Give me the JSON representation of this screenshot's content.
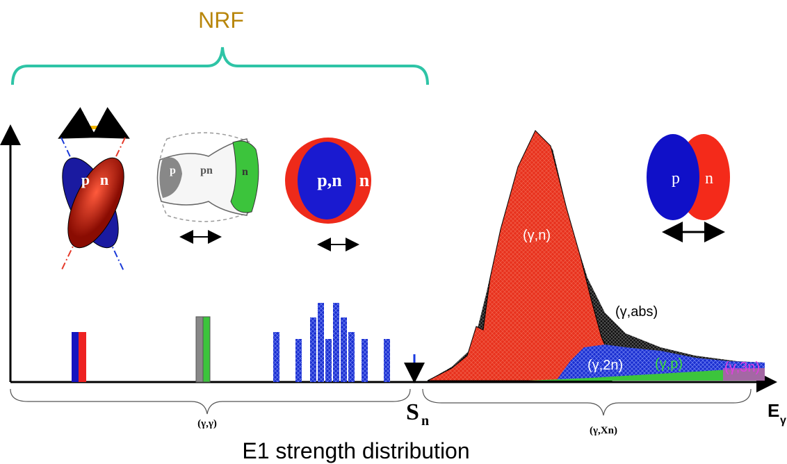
{
  "header": {
    "title": "NRF"
  },
  "modes": [
    {
      "labels": [
        "p",
        "n"
      ]
    },
    {
      "labels": [
        "p",
        "pn",
        "n"
      ]
    },
    {
      "labels": [
        "p,n",
        "n"
      ]
    },
    {
      "labels": [
        "p",
        "n"
      ]
    }
  ],
  "channels": [
    "(γ,n)",
    "(γ,abs)",
    "(γ,2n)",
    "(γ,p)",
    "(γ,3n)"
  ],
  "axis": {
    "threshold": {
      "symbol": "S",
      "subscript": "n"
    },
    "energy": {
      "symbol": "E",
      "subscript": "γ"
    },
    "regions": [
      "(γ,γ)",
      "(γ,Xn)"
    ]
  },
  "caption": "E1 strength distribution"
}
